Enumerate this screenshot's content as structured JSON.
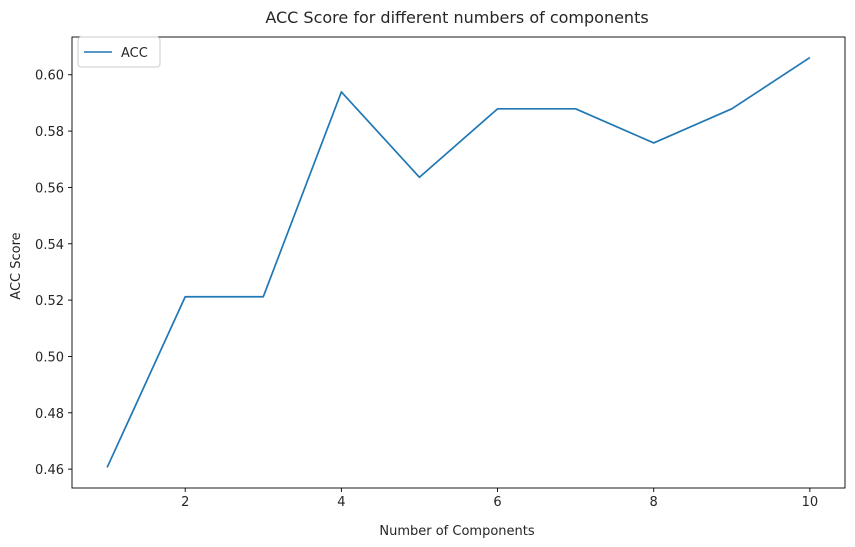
{
  "chart_data": {
    "type": "line",
    "title": "ACC Score for different numbers of components",
    "xlabel": "Number of Components",
    "ylabel": "ACC Score",
    "x": [
      1,
      2,
      3,
      4,
      5,
      6,
      7,
      8,
      9,
      10
    ],
    "series": [
      {
        "name": "ACC",
        "color": "#1f77b4",
        "values": [
          0.4606,
          0.5212,
          0.5212,
          0.5939,
          0.5636,
          0.5879,
          0.5879,
          0.5758,
          0.5879,
          0.6061
        ]
      }
    ],
    "xticks": [
      2,
      4,
      6,
      8,
      10
    ],
    "xtick_labels": [
      "2",
      "4",
      "6",
      "8",
      "10"
    ],
    "yticks": [
      0.46,
      0.48,
      0.5,
      0.52,
      0.54,
      0.56,
      0.58,
      0.6
    ],
    "ytick_labels": [
      "0.46",
      "0.48",
      "0.50",
      "0.52",
      "0.54",
      "0.56",
      "0.58",
      "0.60"
    ],
    "xlim": [
      0.55,
      10.45
    ],
    "ylim": [
      0.4533,
      0.6134
    ],
    "grid": false,
    "legend_position": "top-left"
  }
}
